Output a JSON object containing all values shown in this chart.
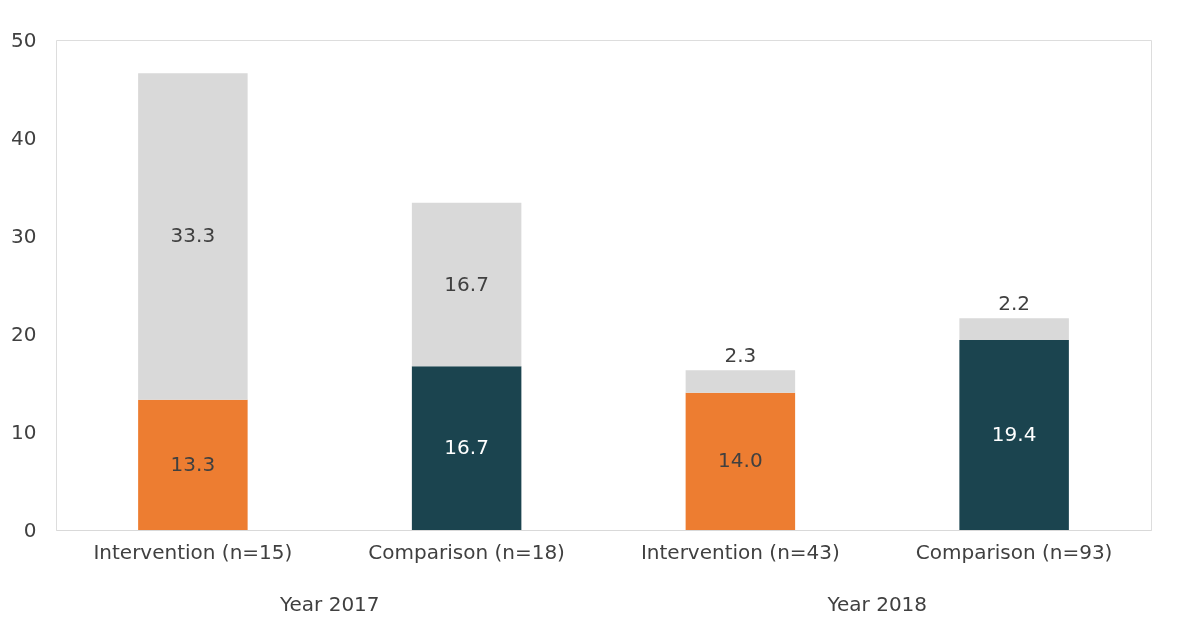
{
  "chart_data": {
    "type": "bar",
    "stacked": true,
    "categories": [
      "Intervention (n=15)",
      "Comparison (n=18)",
      "Intervention (n=43)",
      "Comparison (n=93)"
    ],
    "series": [
      {
        "colors": [
          "#ed7d31",
          "#1b444f",
          "#ed7d31",
          "#1b444f"
        ],
        "values": [
          13.3,
          16.7,
          14.0,
          19.4
        ],
        "value_labels": [
          "13.3",
          "16.7",
          "14.0",
          "19.4"
        ]
      },
      {
        "color": "#d9d9d9",
        "values": [
          33.3,
          16.7,
          2.3,
          2.2
        ],
        "value_labels": [
          "33.3",
          "16.7",
          "2.3",
          "2.2"
        ]
      }
    ],
    "annotations": [
      "Year 2017",
      "Year 2018"
    ],
    "ylim": [
      0,
      50
    ],
    "yticks": [
      0,
      10,
      20,
      30,
      40,
      50
    ],
    "grid": false
  }
}
